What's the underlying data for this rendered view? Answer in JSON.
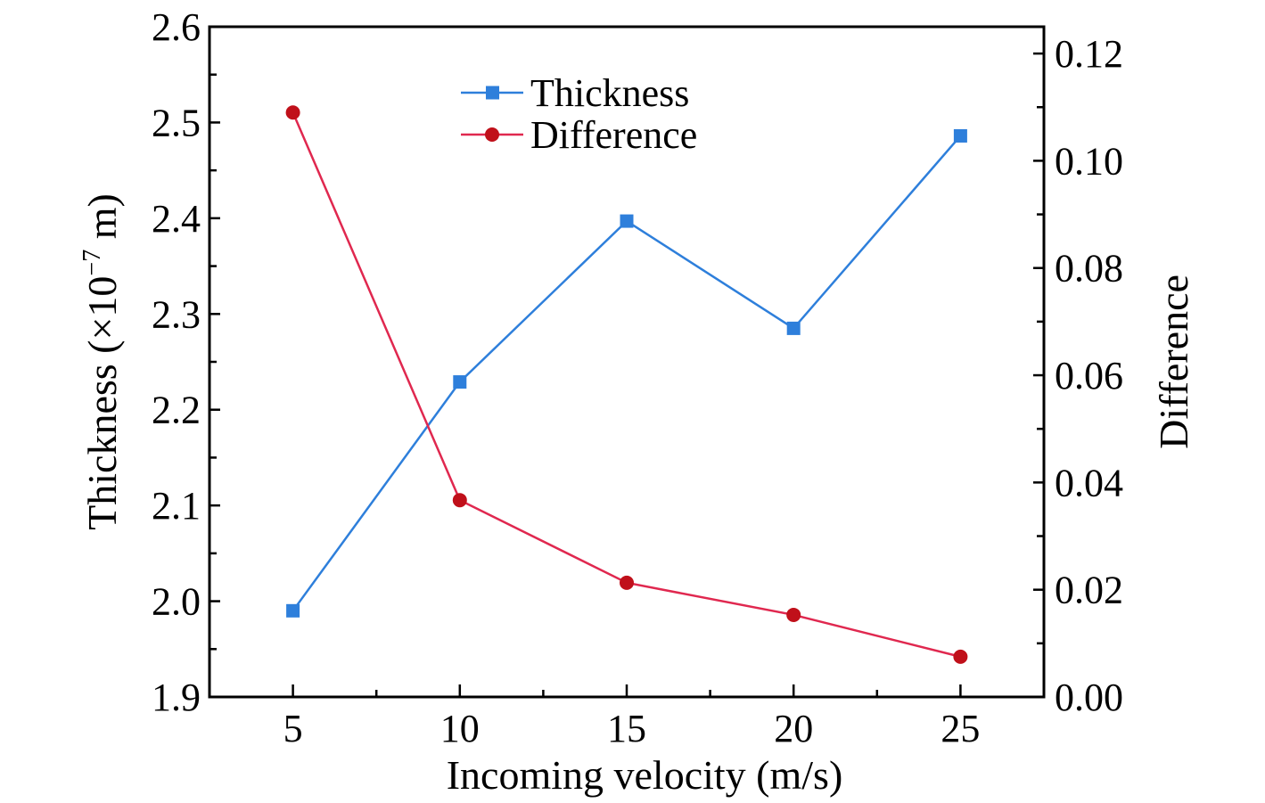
{
  "chart_data": {
    "type": "line",
    "title": "",
    "xlabel": "Incoming velocity (m/s)",
    "ylabel": "Thickness (×10⁻⁷ m)",
    "ylabel_parts": {
      "prefix": "Thickness (×10",
      "sup": "−7",
      "suffix": " m)"
    },
    "y2label": "Difference",
    "x": [
      5,
      10,
      15,
      20,
      25
    ],
    "xlim": [
      2.5,
      27.5
    ],
    "ylim": [
      1.9,
      2.6
    ],
    "y2lim": [
      0,
      0.125
    ],
    "x_ticks": [
      "5",
      "10",
      "15",
      "20",
      "25"
    ],
    "x_tick_values": [
      5,
      10,
      15,
      20,
      25
    ],
    "y_ticks": [
      "1.9",
      "2.0",
      "2.1",
      "2.2",
      "2.3",
      "2.4",
      "2.5",
      "2.6"
    ],
    "y_tick_values": [
      1.9,
      2.0,
      2.1,
      2.2,
      2.3,
      2.4,
      2.5,
      2.6
    ],
    "y2_ticks": [
      "0.00",
      "0.02",
      "0.04",
      "0.06",
      "0.08",
      "0.10",
      "0.12"
    ],
    "y2_tick_values": [
      0,
      0.02,
      0.04,
      0.06,
      0.08,
      0.1,
      0.12
    ],
    "grid": false,
    "legend_position": "top-center",
    "series": [
      {
        "name": "Thickness",
        "axis": "left",
        "marker": "square",
        "color": "#2E7FDB",
        "values": [
          1.99,
          2.229,
          2.397,
          2.285,
          2.486
        ]
      },
      {
        "name": "Difference",
        "axis": "right",
        "marker": "circle",
        "color": "#E0284F",
        "marker_color": "#C0101A",
        "values": [
          0.109,
          0.0367,
          0.0213,
          0.0153,
          0.0075
        ]
      }
    ]
  }
}
